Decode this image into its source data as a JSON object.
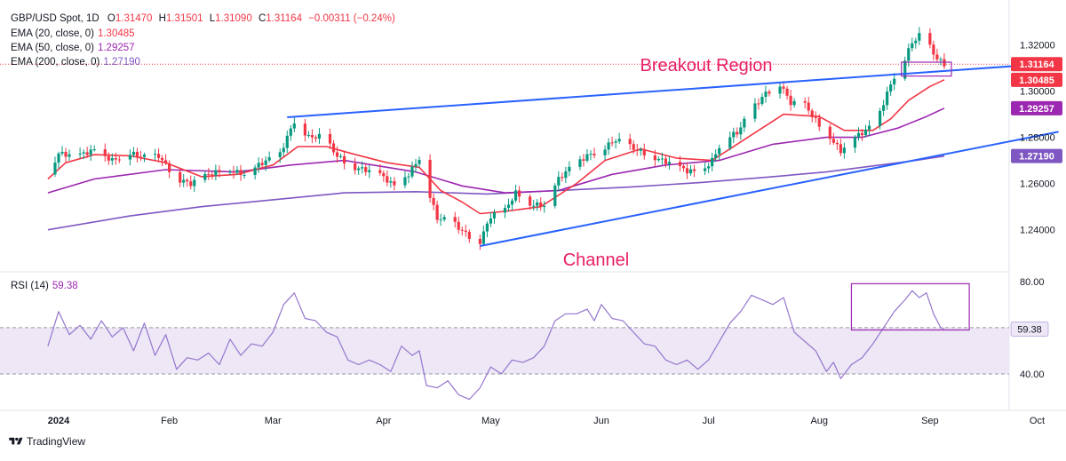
{
  "header": {
    "symbol": "GBP/USD Spot, 1D",
    "o_label": "O",
    "o_value": "1.31470",
    "h_label": "H",
    "h_value": "1.31501",
    "l_label": "L",
    "l_value": "1.31090",
    "c_label": "C",
    "c_value": "1.31164",
    "change": "−0.00311 (−0.24%)",
    "ema20_label": "EMA (20, close, 0)",
    "ema20_value": "1.30485",
    "ema50_label": "EMA (50, close, 0)",
    "ema50_value": "1.29257",
    "ema200_label": "EMA (200, close, 0)",
    "ema200_value": "1.27190",
    "rsi_label": "RSI (14)",
    "rsi_value": "59.38"
  },
  "annotations": {
    "breakout": "Breakout Region",
    "channel": "Channel"
  },
  "branding": {
    "logo_text": "TradingView",
    "logo_icon": "tradingview-logo-icon"
  },
  "colors": {
    "up": "#089981",
    "down": "#f23645",
    "ema20": "#f23645",
    "ema50": "#9c27b0",
    "ema200": "#7e57c2",
    "trendline": "#2962ff",
    "annotation": "#e91e63",
    "rsi": "#9575cd",
    "rsi_band": "#ede7f6",
    "box": "#9c27b0"
  },
  "chart_data": [
    {
      "type": "candlestick",
      "x_axis": {
        "labels": [
          "2024",
          "Feb",
          "Mar",
          "Apr",
          "May",
          "Jun",
          "Jul",
          "Aug",
          "Sep",
          "Oct"
        ],
        "days": [
          0,
          31,
          60,
          91,
          121,
          152,
          182,
          213,
          244,
          274
        ]
      },
      "start_date": "2023-12-26",
      "y_axis": {
        "min": 1.223,
        "max": 1.334,
        "ticks": [
          1.24,
          1.26,
          1.28,
          1.3,
          1.32
        ],
        "tick_labels": [
          "1.24000",
          "1.26000",
          "1.28000",
          "1.30000",
          "1.32000"
        ]
      },
      "price_labels": [
        {
          "value": 1.31164,
          "text": "1.31164",
          "color": "#f23645"
        },
        {
          "value": 1.30485,
          "text": "1.30485",
          "color": "#f23645"
        },
        {
          "value": 1.29257,
          "text": "1.29257",
          "color": "#9c27b0"
        },
        {
          "value": 1.2719,
          "text": "1.27190",
          "color": "#7e57c2"
        }
      ],
      "close_line": 1.31164,
      "closes": [
        [
          -3,
          1.264
        ],
        [
          0,
          1.273
        ],
        [
          5,
          1.272
        ],
        [
          10,
          1.2745
        ],
        [
          15,
          1.27
        ],
        [
          20,
          1.273
        ],
        [
          24,
          1.2715
        ],
        [
          28,
          1.272
        ],
        [
          33,
          1.262
        ],
        [
          37,
          1.26
        ],
        [
          42,
          1.264
        ],
        [
          47,
          1.266
        ],
        [
          52,
          1.264
        ],
        [
          57,
          1.269
        ],
        [
          62,
          1.273
        ],
        [
          66,
          1.287
        ],
        [
          70,
          1.28
        ],
        [
          74,
          1.2805
        ],
        [
          78,
          1.272
        ],
        [
          82,
          1.267
        ],
        [
          86,
          1.266
        ],
        [
          90,
          1.264
        ],
        [
          94,
          1.259
        ],
        [
          98,
          1.264
        ],
        [
          101,
          1.271
        ],
        [
          103,
          1.259
        ],
        [
          106,
          1.245
        ],
        [
          110,
          1.244
        ],
        [
          113,
          1.2395
        ],
        [
          116,
          1.236
        ],
        [
          118,
          1.235
        ],
        [
          121,
          1.246
        ],
        [
          125,
          1.2485
        ],
        [
          128,
          1.256
        ],
        [
          132,
          1.251
        ],
        [
          136,
          1.2505
        ],
        [
          140,
          1.262
        ],
        [
          144,
          1.268
        ],
        [
          148,
          1.272
        ],
        [
          152,
          1.2745
        ],
        [
          156,
          1.279
        ],
        [
          160,
          1.276
        ],
        [
          164,
          1.273
        ],
        [
          168,
          1.2705
        ],
        [
          172,
          1.2685
        ],
        [
          176,
          1.2655
        ],
        [
          180,
          1.265
        ],
        [
          183,
          1.27
        ],
        [
          186,
          1.279
        ],
        [
          190,
          1.282
        ],
        [
          194,
          1.292
        ],
        [
          198,
          1.299
        ],
        [
          202,
          1.303
        ],
        [
          205,
          1.295
        ],
        [
          209,
          1.294
        ],
        [
          213,
          1.285
        ],
        [
          216,
          1.28
        ],
        [
          219,
          1.274
        ],
        [
          222,
          1.279
        ],
        [
          226,
          1.283
        ],
        [
          229,
          1.287
        ],
        [
          232,
          1.299
        ],
        [
          235,
          1.31
        ],
        [
          237,
          1.314
        ],
        [
          239,
          1.321
        ],
        [
          241,
          1.324
        ],
        [
          244,
          1.319
        ],
        [
          246,
          1.314
        ],
        [
          248,
          1.3116
        ]
      ],
      "ema20": [
        [
          -3,
          1.262
        ],
        [
          2,
          1.269
        ],
        [
          10,
          1.2725
        ],
        [
          20,
          1.272
        ],
        [
          30,
          1.269
        ],
        [
          40,
          1.263
        ],
        [
          50,
          1.264
        ],
        [
          60,
          1.268
        ],
        [
          67,
          1.276
        ],
        [
          75,
          1.276
        ],
        [
          82,
          1.273
        ],
        [
          92,
          1.269
        ],
        [
          101,
          1.267
        ],
        [
          107,
          1.257
        ],
        [
          113,
          1.252
        ],
        [
          118,
          1.247
        ],
        [
          125,
          1.248
        ],
        [
          135,
          1.25
        ],
        [
          145,
          1.26
        ],
        [
          153,
          1.27
        ],
        [
          163,
          1.275
        ],
        [
          173,
          1.271
        ],
        [
          183,
          1.27
        ],
        [
          193,
          1.28
        ],
        [
          203,
          1.29
        ],
        [
          213,
          1.289
        ],
        [
          220,
          1.283
        ],
        [
          228,
          1.283
        ],
        [
          233,
          1.288
        ],
        [
          238,
          1.296
        ],
        [
          244,
          1.302
        ],
        [
          248,
          1.3049
        ]
      ],
      "ema50": [
        [
          -3,
          1.256
        ],
        [
          10,
          1.262
        ],
        [
          30,
          1.266
        ],
        [
          50,
          1.265
        ],
        [
          65,
          1.268
        ],
        [
          80,
          1.27
        ],
        [
          100,
          1.265
        ],
        [
          113,
          1.259
        ],
        [
          125,
          1.256
        ],
        [
          140,
          1.257
        ],
        [
          155,
          1.264
        ],
        [
          170,
          1.268
        ],
        [
          185,
          1.27
        ],
        [
          200,
          1.277
        ],
        [
          215,
          1.28
        ],
        [
          225,
          1.28
        ],
        [
          235,
          1.284
        ],
        [
          243,
          1.289
        ],
        [
          248,
          1.2926
        ]
      ],
      "ema200": [
        [
          -3,
          1.24
        ],
        [
          20,
          1.246
        ],
        [
          40,
          1.25
        ],
        [
          60,
          1.253
        ],
        [
          80,
          1.256
        ],
        [
          100,
          1.2565
        ],
        [
          120,
          1.2555
        ],
        [
          140,
          1.257
        ],
        [
          160,
          1.2585
        ],
        [
          180,
          1.2605
        ],
        [
          200,
          1.263
        ],
        [
          215,
          1.265
        ],
        [
          230,
          1.268
        ],
        [
          240,
          1.27
        ],
        [
          248,
          1.2719
        ]
      ],
      "trendlines": [
        {
          "name": "channel-upper",
          "from": [
            64,
            1.2887
          ],
          "to": [
            272,
            1.3113
          ]
        },
        {
          "name": "channel-lower",
          "from": [
            118,
            1.233
          ],
          "to": [
            280,
            1.2824
          ]
        }
      ],
      "annotations": [
        {
          "name": "breakout-box",
          "x1": 236,
          "y1": 1.3125,
          "x2": 250,
          "y2": 1.3065
        }
      ]
    },
    {
      "type": "line",
      "name": "RSI (14)",
      "y_axis": {
        "min": 25,
        "max": 83,
        "ticks": [
          40,
          80
        ],
        "tick_labels": [
          "40.00",
          "80.00"
        ]
      },
      "band": [
        40,
        60
      ],
      "rsi_label": {
        "value": 59.38,
        "text": "59.38"
      },
      "values": [
        [
          -3,
          52
        ],
        [
          0,
          67
        ],
        [
          3,
          57
        ],
        [
          6,
          61
        ],
        [
          9,
          55
        ],
        [
          12,
          63
        ],
        [
          15,
          56
        ],
        [
          18,
          60
        ],
        [
          21,
          50
        ],
        [
          24,
          62
        ],
        [
          27,
          48
        ],
        [
          30,
          57
        ],
        [
          33,
          42
        ],
        [
          36,
          47
        ],
        [
          39,
          46
        ],
        [
          42,
          49
        ],
        [
          45,
          44
        ],
        [
          48,
          55
        ],
        [
          51,
          48
        ],
        [
          54,
          53
        ],
        [
          57,
          52
        ],
        [
          60,
          58
        ],
        [
          63,
          70
        ],
        [
          66,
          75
        ],
        [
          69,
          64
        ],
        [
          72,
          63
        ],
        [
          75,
          58
        ],
        [
          78,
          56
        ],
        [
          81,
          46
        ],
        [
          84,
          44
        ],
        [
          87,
          46
        ],
        [
          90,
          44
        ],
        [
          93,
          41
        ],
        [
          96,
          52
        ],
        [
          99,
          48
        ],
        [
          101,
          50
        ],
        [
          103,
          35
        ],
        [
          106,
          34
        ],
        [
          109,
          37
        ],
        [
          112,
          31
        ],
        [
          115,
          29
        ],
        [
          118,
          34
        ],
        [
          121,
          43
        ],
        [
          124,
          40
        ],
        [
          127,
          46
        ],
        [
          130,
          45
        ],
        [
          133,
          47
        ],
        [
          136,
          52
        ],
        [
          139,
          63
        ],
        [
          142,
          66
        ],
        [
          145,
          66
        ],
        [
          148,
          68
        ],
        [
          150,
          63
        ],
        [
          152,
          70
        ],
        [
          155,
          64
        ],
        [
          158,
          63
        ],
        [
          161,
          58
        ],
        [
          164,
          53
        ],
        [
          167,
          52
        ],
        [
          170,
          46
        ],
        [
          173,
          44
        ],
        [
          176,
          46
        ],
        [
          179,
          42
        ],
        [
          182,
          46
        ],
        [
          185,
          54
        ],
        [
          188,
          62
        ],
        [
          191,
          67
        ],
        [
          194,
          74
        ],
        [
          197,
          72
        ],
        [
          200,
          70
        ],
        [
          203,
          73
        ],
        [
          206,
          58
        ],
        [
          209,
          54
        ],
        [
          212,
          50
        ],
        [
          215,
          41
        ],
        [
          217,
          45
        ],
        [
          219,
          38
        ],
        [
          222,
          44
        ],
        [
          225,
          47
        ],
        [
          228,
          53
        ],
        [
          231,
          60
        ],
        [
          234,
          67
        ],
        [
          237,
          72
        ],
        [
          239,
          76
        ],
        [
          241,
          73
        ],
        [
          243,
          75
        ],
        [
          245,
          66
        ],
        [
          247,
          60
        ],
        [
          248,
          59.38
        ]
      ],
      "annotations": [
        {
          "name": "rsi-box",
          "x1": 222,
          "y1": 79,
          "x2": 255,
          "y2": 59
        }
      ]
    }
  ]
}
